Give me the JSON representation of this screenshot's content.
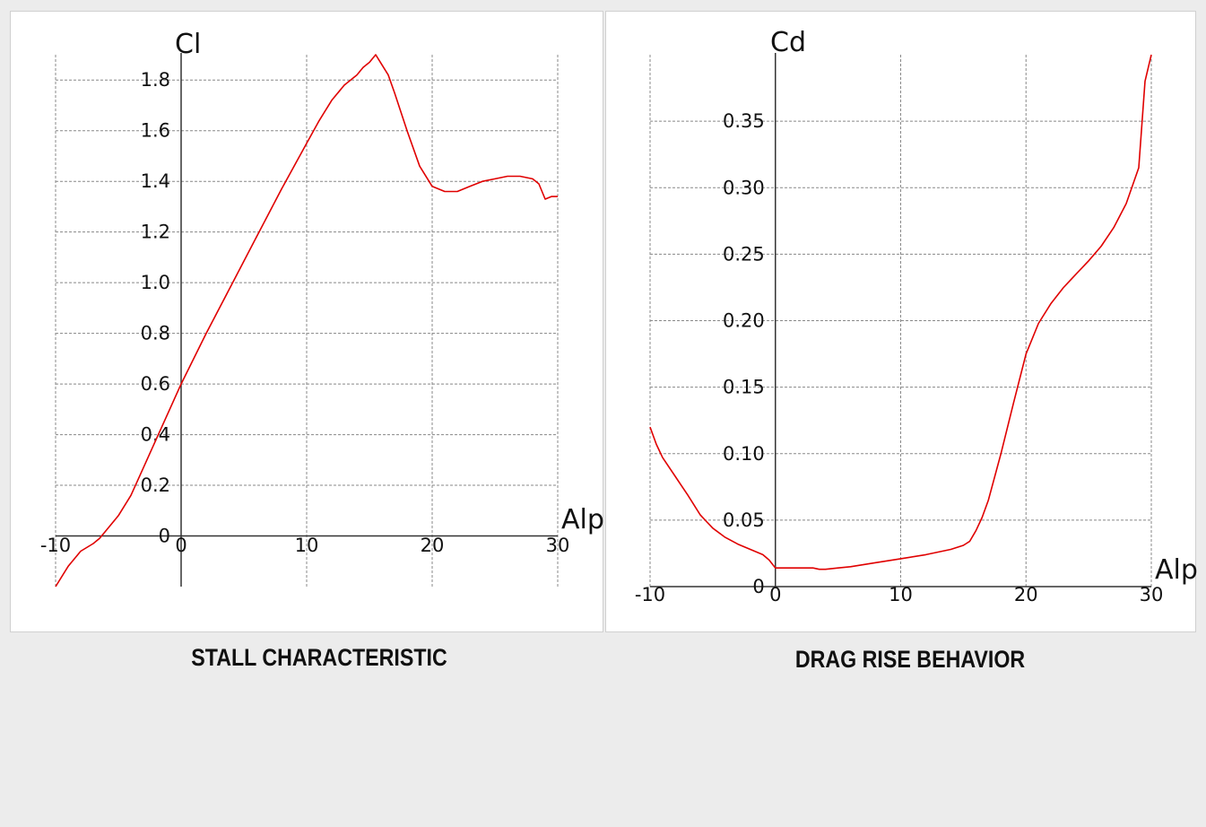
{
  "captions": {
    "left": "STALL CHARACTERISTIC",
    "right": "DRAG RISE BEHAVIOR"
  },
  "colors": {
    "curve": "#e00000",
    "grid": "#888888",
    "axis": "#333333",
    "panel_bg": "#ffffff",
    "page_bg": "#ececec"
  },
  "chart_data": [
    {
      "type": "line",
      "title": "STALL CHARACTERISTIC",
      "xlabel": "Alp",
      "ylabel": "Cl",
      "xlim": [
        -10,
        30
      ],
      "ylim": [
        -0.2,
        1.9
      ],
      "grid": true,
      "xticks": [
        -10,
        0,
        10,
        20,
        30
      ],
      "xtick_labels": [
        "-10",
        "0",
        "10",
        "20",
        "30"
      ],
      "yticks": [
        0,
        0.2,
        0.4,
        0.6,
        0.8,
        1.0,
        1.2,
        1.4,
        1.6,
        1.8
      ],
      "ytick_labels": [
        "0",
        "0.2",
        "0.4",
        "0.6",
        "0.8",
        "1.0",
        "1.2",
        "1.4",
        "1.6",
        "1.8"
      ],
      "series": [
        {
          "x": [
            -10,
            -9,
            -8,
            -7,
            -6.5,
            -6,
            -5,
            -4,
            -3,
            -2,
            -1,
            0,
            2,
            4,
            6,
            8,
            10,
            11,
            12,
            13,
            14,
            14.5,
            15,
            15.5,
            16,
            16.5,
            17,
            18,
            19,
            20,
            21,
            22,
            23,
            24,
            25,
            26,
            27,
            28,
            28.5,
            29,
            29.5,
            30
          ],
          "y": [
            -0.2,
            -0.12,
            -0.06,
            -0.03,
            -0.01,
            0.02,
            0.08,
            0.16,
            0.27,
            0.38,
            0.49,
            0.6,
            0.8,
            0.99,
            1.18,
            1.37,
            1.55,
            1.64,
            1.72,
            1.78,
            1.82,
            1.85,
            1.87,
            1.9,
            1.86,
            1.82,
            1.75,
            1.6,
            1.46,
            1.38,
            1.36,
            1.36,
            1.38,
            1.4,
            1.41,
            1.42,
            1.42,
            1.41,
            1.39,
            1.33,
            1.34,
            1.34
          ]
        }
      ]
    },
    {
      "type": "line",
      "title": "DRAG RISE BEHAVIOR",
      "xlabel": "Alp",
      "ylabel": "Cd",
      "xlim": [
        -10,
        30
      ],
      "ylim": [
        0,
        0.4
      ],
      "grid": true,
      "xticks": [
        -10,
        0,
        10,
        20,
        30
      ],
      "xtick_labels": [
        "-10",
        "0",
        "10",
        "20",
        "30"
      ],
      "yticks": [
        0,
        0.05,
        0.1,
        0.15,
        0.2,
        0.25,
        0.3,
        0.35
      ],
      "ytick_labels": [
        "0",
        "0.05",
        "0.10",
        "0.15",
        "0.20",
        "0.25",
        "0.30",
        "0.35"
      ],
      "series": [
        {
          "x": [
            -10,
            -9.5,
            -9,
            -8,
            -7,
            -6,
            -5.5,
            -5,
            -4,
            -3,
            -2,
            -1,
            -0.5,
            0,
            1,
            2,
            3,
            3.5,
            4,
            5,
            6,
            8,
            10,
            12,
            14,
            15,
            15.5,
            16,
            16.5,
            17,
            18,
            19,
            20,
            21,
            22,
            23,
            24,
            25,
            26,
            27,
            28,
            29,
            29.5,
            30
          ],
          "y": [
            0.12,
            0.107,
            0.097,
            0.083,
            0.069,
            0.054,
            0.049,
            0.044,
            0.037,
            0.032,
            0.028,
            0.024,
            0.02,
            0.014,
            0.014,
            0.014,
            0.014,
            0.013,
            0.013,
            0.014,
            0.015,
            0.018,
            0.021,
            0.024,
            0.028,
            0.031,
            0.034,
            0.042,
            0.052,
            0.065,
            0.1,
            0.138,
            0.175,
            0.198,
            0.213,
            0.225,
            0.235,
            0.245,
            0.256,
            0.27,
            0.288,
            0.315,
            0.38,
            0.4
          ]
        }
      ]
    }
  ]
}
